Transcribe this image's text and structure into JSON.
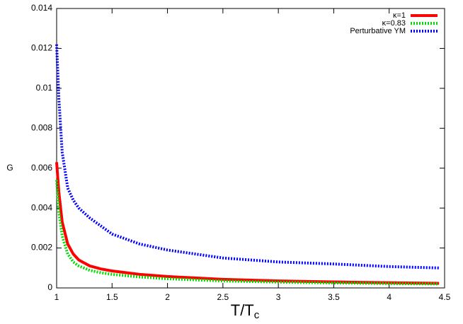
{
  "chart_data": {
    "type": "line",
    "xlabel": "T/T",
    "xlabel_sub": "c",
    "ylabel": "G",
    "x": [
      1.0,
      1.02,
      1.05,
      1.1,
      1.15,
      1.2,
      1.3,
      1.4,
      1.5,
      1.75,
      2,
      2.5,
      3,
      3.5,
      4,
      4.45
    ],
    "series": [
      {
        "name": "κ=1",
        "color": "#ff0000",
        "style": "solid",
        "values": [
          0.0063,
          0.0048,
          0.0033,
          0.0022,
          0.0017,
          0.0014,
          0.0011,
          0.00095,
          0.00085,
          0.00068,
          0.00057,
          0.00043,
          0.00035,
          0.0003,
          0.00026,
          0.00023
        ]
      },
      {
        "name": "κ=0.83",
        "color": "#00dd00",
        "style": "dotted",
        "values": [
          0.0054,
          0.0038,
          0.0026,
          0.0017,
          0.0013,
          0.0011,
          0.00088,
          0.00076,
          0.00068,
          0.00055,
          0.00046,
          0.00035,
          0.00029,
          0.00025,
          0.00022,
          0.0002
        ]
      },
      {
        "name": "Perturbative YM",
        "color": "#0000ff",
        "style": "dotted",
        "values": [
          0.0122,
          0.0095,
          0.0068,
          0.005,
          0.0044,
          0.004,
          0.0035,
          0.0031,
          0.0027,
          0.0022,
          0.0019,
          0.0015,
          0.0013,
          0.0012,
          0.00107,
          0.001
        ]
      }
    ],
    "xlim": [
      1,
      4.5
    ],
    "xticks": [
      1,
      1.5,
      2,
      2.5,
      3,
      3.5,
      4,
      4.5
    ],
    "ylim": [
      0,
      0.014
    ],
    "yticks": [
      0,
      0.002,
      0.004,
      0.006,
      0.008,
      0.01,
      0.012,
      0.014
    ],
    "legend": "top-right"
  }
}
